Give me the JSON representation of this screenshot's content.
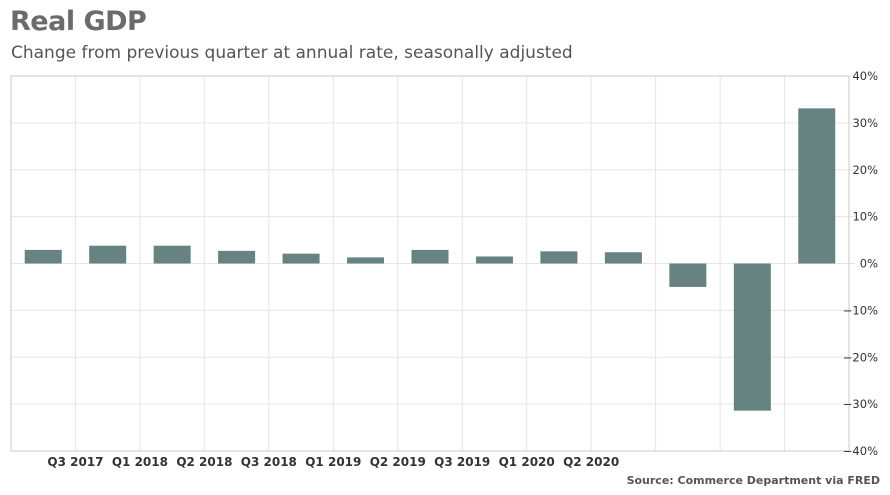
{
  "chart_data": {
    "type": "bar",
    "title": "Real GDP",
    "subtitle": "Change from previous quarter at annual rate, seasonally adjusted",
    "source": "Source: Commerce Department via FRED",
    "ylim": [
      -40,
      40
    ],
    "y_ticks": [
      40,
      30,
      20,
      10,
      0,
      -10,
      -20,
      -30,
      -40
    ],
    "y_tick_labels": [
      "40%",
      "30%",
      "20%",
      "10%",
      "0%",
      "−10%",
      "−20%",
      "−30%",
      "−40%"
    ],
    "x_tick_labels": [
      "Q3 2017",
      "Q1 2018",
      "Q2 2018",
      "Q3 2018",
      "Q1 2019",
      "Q2 2019",
      "Q3 2019",
      "Q1 2020",
      "Q2 2020"
    ],
    "values": [
      2.9,
      3.8,
      3.8,
      2.7,
      2.1,
      1.3,
      2.9,
      1.5,
      2.6,
      2.4,
      -5.0,
      -31.4,
      33.1
    ],
    "grid": true,
    "bar_color": "#668382",
    "grid_color": "#e6e6e6",
    "axis_color": "#c8c8c8"
  }
}
